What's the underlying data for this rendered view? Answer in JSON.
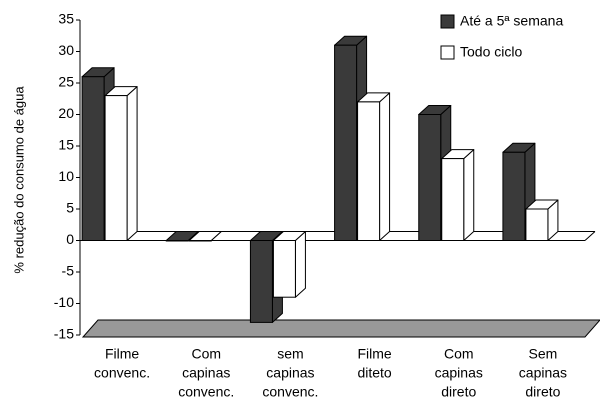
{
  "chart_data": {
    "type": "bar3d",
    "y_label": "% redução do consumo de água",
    "categories": [
      [
        "Filme",
        "convenc."
      ],
      [
        "Com",
        "capinas",
        "convenc."
      ],
      [
        "sem",
        "capinas",
        "convenc."
      ],
      [
        "Filme",
        "diteto"
      ],
      [
        "Com",
        "capinas",
        "direto"
      ],
      [
        "Sem",
        "capinas",
        "direto"
      ]
    ],
    "series": [
      {
        "name": "Até a 5ª semana",
        "color": "#3a3a3a",
        "values": [
          26,
          0,
          -13,
          31,
          20,
          14
        ]
      },
      {
        "name": "Todo ciclo",
        "color": "#ffffff",
        "values": [
          23,
          0,
          -9,
          22,
          13,
          5
        ]
      }
    ],
    "ylim": [
      -15,
      35
    ],
    "yticks": [
      -15,
      -10,
      -5,
      0,
      5,
      10,
      15,
      20,
      25,
      30,
      35
    ]
  }
}
